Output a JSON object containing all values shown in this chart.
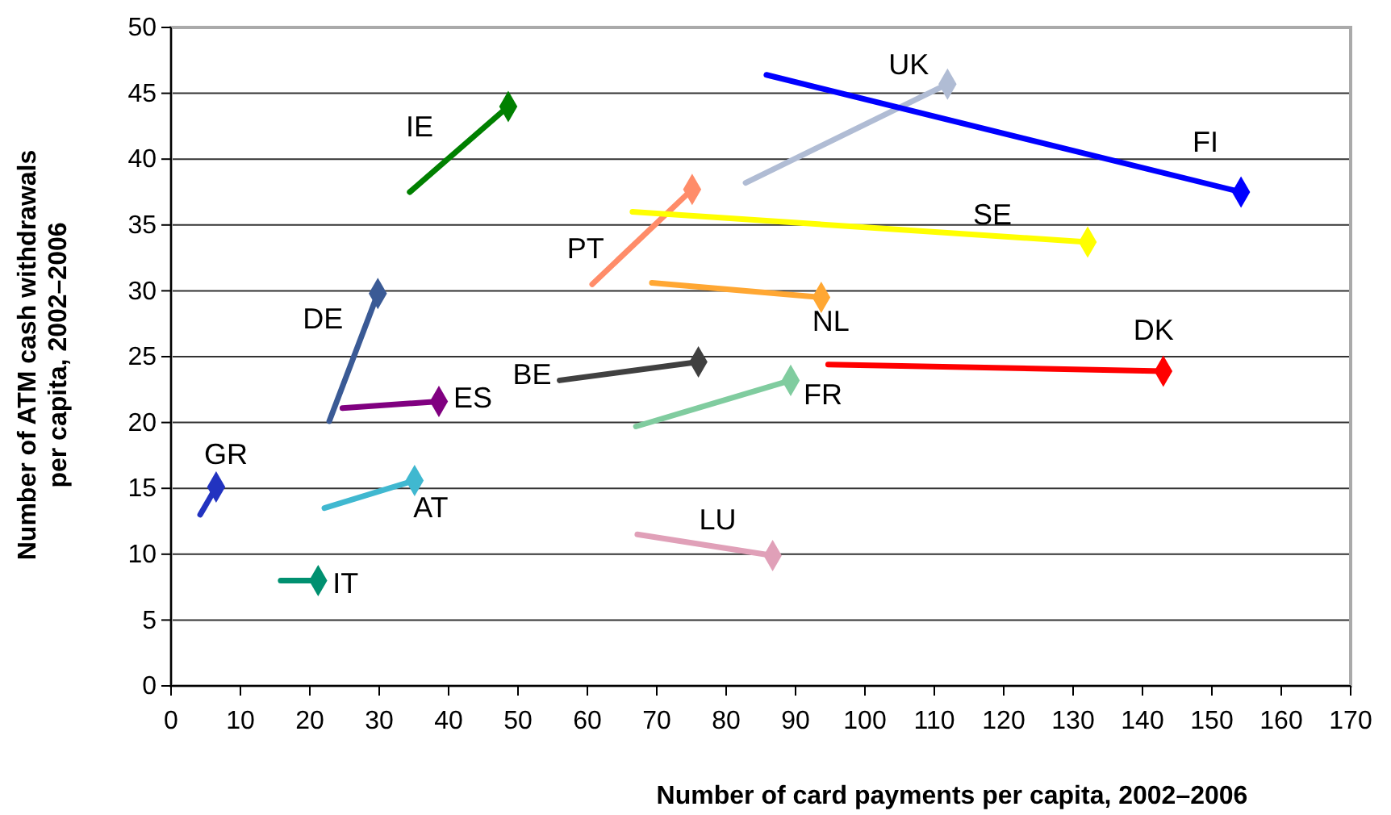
{
  "chart_data": {
    "type": "line",
    "xlabel": "Number of card payments per capita, 2002–2006",
    "ylabel": "Number of ATM cash withdrawals per capita, 2002–2006",
    "xlim": [
      0,
      170
    ],
    "xticks": [
      0,
      10,
      20,
      30,
      40,
      50,
      60,
      70,
      80,
      90,
      100,
      110,
      120,
      130,
      140,
      150,
      160,
      170
    ],
    "ylim": [
      0,
      50
    ],
    "yticks": [
      0,
      5,
      10,
      15,
      20,
      25,
      30,
      35,
      40,
      45,
      50
    ],
    "grid": "y",
    "marker": "diamond",
    "series": [
      {
        "name": "IE",
        "color": "#008000",
        "x": [
          34.4,
          48.6
        ],
        "values": [
          37.5,
          44.0
        ]
      },
      {
        "name": "PT",
        "color": "#ff8c69",
        "x": [
          60.7,
          75.1
        ],
        "values": [
          30.5,
          37.7
        ]
      },
      {
        "name": "DE",
        "color": "#3a5a95",
        "x": [
          22.8,
          29.8
        ],
        "values": [
          20.1,
          29.8
        ]
      },
      {
        "name": "ES",
        "color": "#800080",
        "x": [
          24.7,
          38.6
        ],
        "values": [
          21.1,
          21.6
        ]
      },
      {
        "name": "BE",
        "color": "#404040",
        "x": [
          56.0,
          76.0
        ],
        "values": [
          23.2,
          24.6
        ]
      },
      {
        "name": "FR",
        "color": "#80cc9f",
        "x": [
          67.0,
          89.3
        ],
        "values": [
          19.7,
          23.2
        ]
      },
      {
        "name": "UK",
        "color": "#b0bcd4",
        "x": [
          82.8,
          111.9
        ],
        "values": [
          38.2,
          45.7
        ]
      },
      {
        "name": "FI",
        "color": "#0000ff",
        "x": [
          85.8,
          154.2
        ],
        "values": [
          46.4,
          37.5
        ]
      },
      {
        "name": "SE",
        "color": "#ffff00",
        "x": [
          66.5,
          132.1
        ],
        "values": [
          36.0,
          33.7
        ]
      },
      {
        "name": "NL",
        "color": "#ffa733",
        "x": [
          69.3,
          93.7
        ],
        "values": [
          30.6,
          29.5
        ]
      },
      {
        "name": "DK",
        "color": "#ff0000",
        "x": [
          94.7,
          143.0
        ],
        "values": [
          24.4,
          23.9
        ]
      },
      {
        "name": "GR",
        "color": "#2233c0",
        "x": [
          4.2,
          6.5
        ],
        "values": [
          13.0,
          15.1
        ]
      },
      {
        "name": "AT",
        "color": "#40b8d0",
        "x": [
          22.1,
          35.1
        ],
        "values": [
          13.5,
          15.6
        ]
      },
      {
        "name": "IT",
        "color": "#009070",
        "x": [
          15.8,
          21.2
        ],
        "values": [
          8.0,
          8.0
        ]
      },
      {
        "name": "LU",
        "color": "#e0a0b8",
        "x": [
          67.2,
          86.7
        ],
        "values": [
          11.5,
          9.9
        ]
      }
    ]
  }
}
